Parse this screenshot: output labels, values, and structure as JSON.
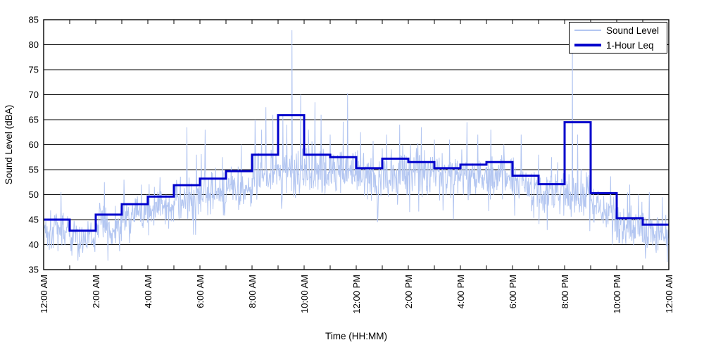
{
  "window": {
    "background": "#ffffff",
    "text_color": "#000000"
  },
  "chart_data": {
    "type": "line",
    "title": "",
    "xlabel": "Time (HH:MM)",
    "ylabel": "Sound Level (dBA)",
    "xlim_hours": [
      0,
      24
    ],
    "ylim": [
      35,
      85
    ],
    "ytick_step": 5,
    "yticks": [
      35,
      40,
      45,
      50,
      55,
      60,
      65,
      70,
      75,
      80,
      85
    ],
    "x_tick_labels": [
      "12:00 AM",
      "2:00 AM",
      "4:00 AM",
      "6:00 AM",
      "8:00 AM",
      "10:00 AM",
      "12:00 PM",
      "2:00 PM",
      "4:00 PM",
      "6:00 PM",
      "8:00 PM",
      "10:00 PM",
      "12:00 AM"
    ],
    "x_major_tick_every_hours": 2,
    "x_minor_tick_every_hours": 1,
    "grid": {
      "horizontal": true,
      "vertical": false,
      "color": "#000000"
    },
    "axes_color": "#000000",
    "legend": {
      "position": "top-right",
      "entries": [
        "Sound Level",
        "1-Hour Leq"
      ]
    },
    "series": [
      {
        "name": "Sound Level",
        "color": "#b3c6f1",
        "line_width": 1,
        "description": "noisy 1-minute sound level trace",
        "noise_seed": 1337,
        "hourly_envelope_dBA": [
          [
            43.0,
            2.8
          ],
          [
            41.5,
            2.5
          ],
          [
            44.0,
            2.8
          ],
          [
            46.0,
            2.8
          ],
          [
            47.5,
            2.8
          ],
          [
            49.0,
            3.0
          ],
          [
            50.5,
            3.0
          ],
          [
            51.5,
            3.0
          ],
          [
            54.0,
            3.5
          ],
          [
            55.0,
            3.5
          ],
          [
            54.5,
            3.5
          ],
          [
            54.5,
            3.2
          ],
          [
            53.5,
            3.2
          ],
          [
            54.5,
            3.2
          ],
          [
            54.5,
            3.2
          ],
          [
            53.5,
            3.0
          ],
          [
            54.0,
            3.0
          ],
          [
            54.5,
            3.0
          ],
          [
            52.5,
            3.0
          ],
          [
            50.5,
            3.0
          ],
          [
            50.0,
            3.2
          ],
          [
            47.5,
            3.2
          ],
          [
            44.0,
            2.8
          ],
          [
            42.5,
            3.0
          ]
        ],
        "visible_peaks_dips_minute_dBA": [
          [
            40,
            50.5
          ],
          [
            65,
            37.8
          ],
          [
            140,
            52.5
          ],
          [
            185,
            53.0
          ],
          [
            225,
            52.0
          ],
          [
            268,
            53.5
          ],
          [
            330,
            63.5
          ],
          [
            352,
            58.0
          ],
          [
            372,
            63.0
          ],
          [
            412,
            57.5
          ],
          [
            455,
            60.0
          ],
          [
            487,
            65.0
          ],
          [
            502,
            63.0
          ],
          [
            512,
            67.5
          ],
          [
            528,
            66.0
          ],
          [
            551,
            66.0
          ],
          [
            560,
            64.0
          ],
          [
            572,
            82.9
          ],
          [
            592,
            70.0
          ],
          [
            610,
            63.0
          ],
          [
            625,
            68.5
          ],
          [
            639,
            66.0
          ],
          [
            660,
            62.0
          ],
          [
            700,
            70.3
          ],
          [
            730,
            62.5
          ],
          [
            770,
            45.5
          ],
          [
            790,
            62.0
          ],
          [
            820,
            64.0
          ],
          [
            845,
            60.0
          ],
          [
            870,
            63.5
          ],
          [
            900,
            61.0
          ],
          [
            935,
            61.0
          ],
          [
            975,
            64.5
          ],
          [
            1000,
            62.0
          ],
          [
            1030,
            63.0
          ],
          [
            1060,
            60.0
          ],
          [
            1100,
            62.0
          ],
          [
            1140,
            58.0
          ],
          [
            1170,
            57.5
          ],
          [
            1218,
            80.5
          ],
          [
            1230,
            62.0
          ],
          [
            1260,
            58.0
          ],
          [
            1310,
            40.0
          ],
          [
            1350,
            52.0
          ],
          [
            1370,
            50.0
          ],
          [
            1395,
            50.5
          ],
          [
            1425,
            49.5
          ],
          [
            1437,
            36.5
          ]
        ]
      },
      {
        "name": "1-Hour Leq",
        "color": "#0000cc",
        "line_width": 3,
        "description": "hourly equivalent level step line",
        "hourly_leq_dBA": [
          45.0,
          42.8,
          46.0,
          48.1,
          49.6,
          51.9,
          53.2,
          54.7,
          58.0,
          65.9,
          58.0,
          57.5,
          55.3,
          57.2,
          56.5,
          55.3,
          56.0,
          56.5,
          53.8,
          52.1,
          64.5,
          50.3,
          45.3,
          44.0
        ]
      }
    ]
  }
}
